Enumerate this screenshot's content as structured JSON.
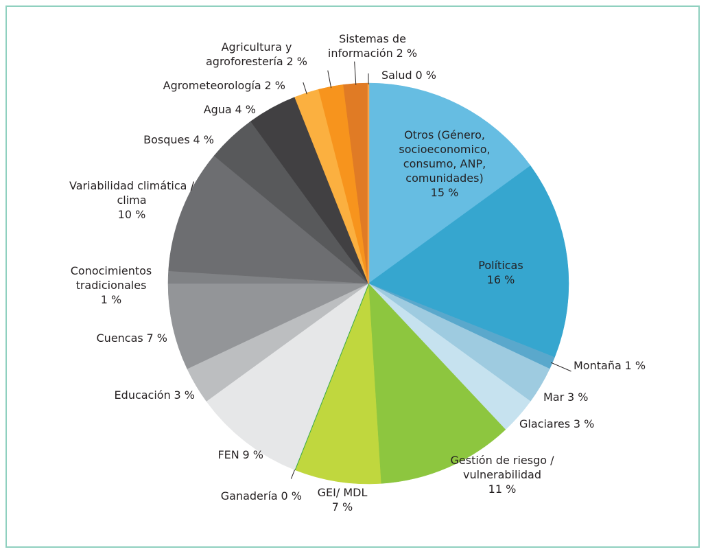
{
  "chart_data": {
    "type": "pie",
    "categories": [
      "Otros (Género, socioeconomico, consumo, ANP, comunidades)",
      "Políticas",
      "Montaña",
      "Mar",
      "Glaciares",
      "Gestión de riesgo / vulnerabilidad",
      "GEI/ MDL",
      "Ganadería",
      "FEN",
      "Educación",
      "Cuencas",
      "Conocimientos tradicionales",
      "Variabilidad climática / clima",
      "Bosques",
      "Agua",
      "Agrometeorología",
      "Agricultura y agroforestería",
      "Sistemas de información",
      "Salud"
    ],
    "values": [
      15,
      16,
      1,
      3,
      3,
      11,
      7,
      0,
      9,
      3,
      7,
      1,
      10,
      4,
      4,
      2,
      2,
      2,
      0
    ],
    "value_labels": [
      "15 %",
      "16 %",
      "1 %",
      "3 %",
      "3 %",
      "11 %",
      "7 %",
      "0 %",
      "9 %",
      "3 %",
      "7 %",
      "1 %",
      "10 %",
      "4 %",
      "4 %",
      "2 %",
      "2 %",
      "2 %",
      "0 %"
    ],
    "colors": [
      "#66bde2",
      "#36a6cf",
      "#5aa8cc",
      "#9ecbe0",
      "#c6e2ef",
      "#8dc63f",
      "#c0d73e",
      "#3aaa49",
      "#e6e7e8",
      "#bcbec0",
      "#939598",
      "#808285",
      "#6d6e71",
      "#58595b",
      "#414042",
      "#fbb040",
      "#f7941d",
      "#e07b25",
      "#f8a44c"
    ]
  }
}
